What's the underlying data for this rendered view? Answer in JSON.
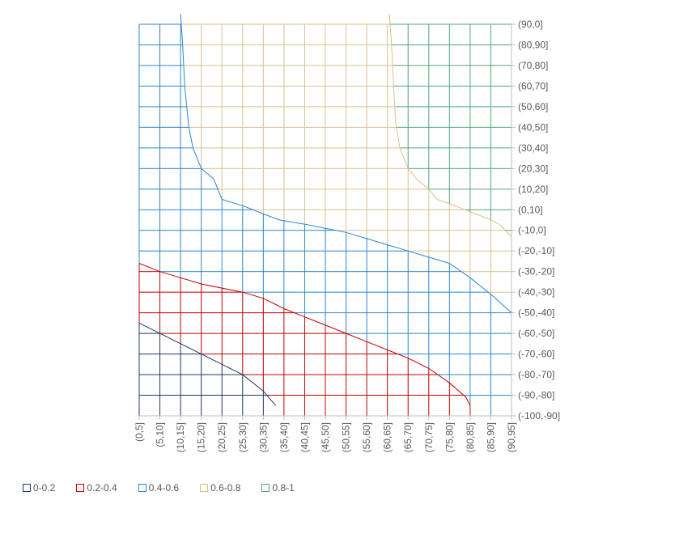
{
  "chart_data": {
    "type": "surface-contour",
    "x_categories": [
      "(0,5]",
      "(5,10]",
      "(10,15]",
      "(15,20]",
      "(20,25]",
      "(25,30]",
      "(30,35]",
      "(35,40]",
      "(40,45]",
      "(45,50]",
      "(50,55]",
      "(55,60]",
      "(60,65]",
      "(65,70]",
      "(70,75]",
      "(75,80]",
      "(80,85]",
      "(85,90]",
      "(90,95]"
    ],
    "y_categories": [
      "(-100,-90]",
      "(-90,-80]",
      "(-80,-70]",
      "(-70,-60]",
      "(-60,-50]",
      "(-50,-40]",
      "(-40,-30]",
      "(-30,-20]",
      "(-20,-10]",
      "(-10,0]",
      "(0,10]",
      "(10,20]",
      "(20,30]",
      "(30,40]",
      "(40,50]",
      "(50,60]",
      "(60,70]",
      "(70,80]",
      "(80,90]",
      "(90,0]"
    ],
    "y_axis_position": "right",
    "x_label_rotation": "vertical",
    "series": [
      {
        "name": "0-0.2",
        "color": "#1f3864"
      },
      {
        "name": "0.2-0.4",
        "color": "#c00000"
      },
      {
        "name": "0.4-0.6",
        "color": "#2e86c8"
      },
      {
        "name": "0.6-0.8",
        "color": "#d9c08f"
      },
      {
        "name": "0.8-1",
        "color": "#4ea67a"
      }
    ],
    "boundaries": [
      {
        "between": "0-0.2|0.2-0.4",
        "points": [
          [
            0,
            -55
          ],
          [
            5,
            -60
          ],
          [
            10,
            -65
          ],
          [
            15,
            -70
          ],
          [
            20,
            -75
          ],
          [
            25,
            -80
          ],
          [
            30,
            -88
          ],
          [
            33,
            -95
          ]
        ]
      },
      {
        "between": "0.2-0.4|0.4-0.6",
        "points": [
          [
            0,
            -26
          ],
          [
            5,
            -30
          ],
          [
            10,
            -33
          ],
          [
            15,
            -36
          ],
          [
            25,
            -40
          ],
          [
            30,
            -43
          ],
          [
            35,
            -48
          ],
          [
            40,
            -52
          ],
          [
            45,
            -56
          ],
          [
            50,
            -60
          ],
          [
            55,
            -64
          ],
          [
            60,
            -68
          ],
          [
            65,
            -72
          ],
          [
            70,
            -77
          ],
          [
            75,
            -84
          ],
          [
            79,
            -91
          ],
          [
            80,
            -95
          ]
        ]
      },
      {
        "between": "0.4-0.6|0.6-0.8",
        "points": [
          [
            10,
            95
          ],
          [
            10.5,
            80
          ],
          [
            11,
            60
          ],
          [
            12,
            40
          ],
          [
            13,
            30
          ],
          [
            15,
            20
          ],
          [
            18,
            15
          ],
          [
            20,
            5
          ],
          [
            25,
            2
          ],
          [
            30,
            -2
          ],
          [
            34,
            -5
          ],
          [
            40,
            -7
          ],
          [
            45,
            -9
          ],
          [
            50,
            -11
          ],
          [
            55,
            -14
          ],
          [
            60,
            -17
          ],
          [
            65,
            -20
          ],
          [
            70,
            -23
          ],
          [
            75,
            -26
          ],
          [
            80,
            -33
          ],
          [
            85,
            -41
          ],
          [
            90,
            -50
          ]
        ]
      },
      {
        "between": "0.6-0.8|0.8-1",
        "points": [
          [
            60.5,
            95
          ],
          [
            61,
            80
          ],
          [
            61.5,
            60
          ],
          [
            62,
            42
          ],
          [
            63,
            30
          ],
          [
            65,
            20
          ],
          [
            67,
            15
          ],
          [
            70,
            10
          ],
          [
            72,
            5
          ],
          [
            75,
            3
          ],
          [
            80,
            -1
          ],
          [
            84,
            -4
          ],
          [
            87,
            -7
          ],
          [
            90,
            -13
          ]
        ]
      }
    ]
  }
}
